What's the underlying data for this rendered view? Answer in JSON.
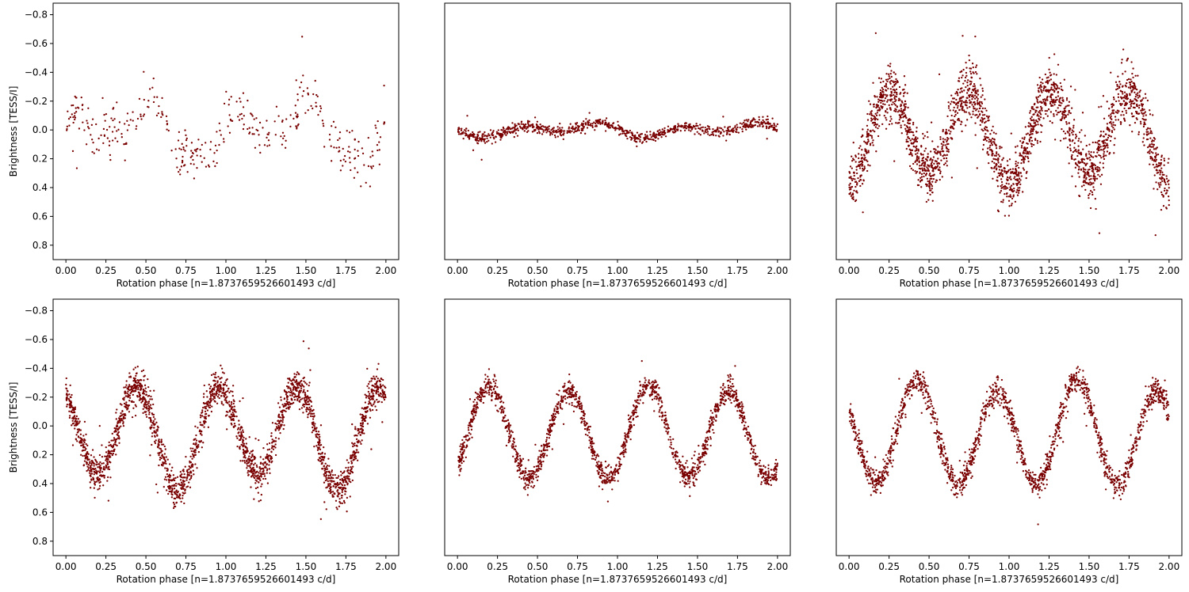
{
  "figure": {
    "point_color": "#7a0000",
    "axis_color": "#000000",
    "background": "#ffffff"
  },
  "chart_data": [
    {
      "type": "scatter",
      "panel": "top-left",
      "xlabel": "Rotation phase [n=1.8737659526601493 c/d]",
      "ylabel": "Brightness [TESS/I]",
      "xlim": [
        -0.08,
        2.08
      ],
      "ylim": [
        0.9,
        -0.88
      ],
      "y_inverted": true,
      "xticks": [
        0.0,
        0.25,
        0.5,
        0.75,
        1.0,
        1.25,
        1.5,
        1.75,
        2.0
      ],
      "xtick_labels": [
        "0.00",
        "0.25",
        "0.50",
        "0.75",
        "1.00",
        "1.25",
        "1.50",
        "1.75",
        "2.00"
      ],
      "yticks": [
        -0.8,
        -0.6,
        -0.4,
        -0.2,
        0.0,
        0.2,
        0.4,
        0.6,
        0.8
      ],
      "ytick_labels": [
        "−0.8",
        "−0.6",
        "−0.4",
        "−0.2",
        "0.0",
        "0.2",
        "0.4",
        "0.6",
        "0.8"
      ],
      "show_yticks": true,
      "n_points": 380,
      "curve": {
        "mean": 0.0,
        "harmonics": [
          [
            0.13,
            2,
            0.55
          ],
          [
            0.1,
            1,
            1.35
          ],
          [
            0.05,
            4,
            0.3
          ]
        ]
      },
      "scatter": 0.085,
      "point_color": "#7a0000"
    },
    {
      "type": "scatter",
      "panel": "top-middle",
      "xlabel": "Rotation phase [n=1.8737659526601493 c/d]",
      "ylabel": "",
      "xlim": [
        -0.08,
        2.08
      ],
      "ylim": [
        0.9,
        -0.88
      ],
      "y_inverted": true,
      "xticks": [
        0.0,
        0.25,
        0.5,
        0.75,
        1.0,
        1.25,
        1.5,
        1.75,
        2.0
      ],
      "xtick_labels": [
        "0.00",
        "0.25",
        "0.50",
        "0.75",
        "1.00",
        "1.25",
        "1.50",
        "1.75",
        "2.00"
      ],
      "yticks": [],
      "ytick_labels": [],
      "show_yticks": false,
      "n_points": 900,
      "curve": {
        "mean": 0.0,
        "harmonics": [
          [
            0.025,
            1,
            0.75
          ],
          [
            0.035,
            2,
            1.4
          ]
        ]
      },
      "scatter": 0.018,
      "point_color": "#7a0000"
    },
    {
      "type": "scatter",
      "panel": "top-right",
      "xlabel": "Rotation phase [n=1.8737659526601493 c/d]",
      "ylabel": "",
      "xlim": [
        -0.08,
        2.08
      ],
      "ylim": [
        0.9,
        -0.88
      ],
      "y_inverted": true,
      "xticks": [
        0.0,
        0.25,
        0.5,
        0.75,
        1.0,
        1.25,
        1.5,
        1.75,
        2.0
      ],
      "xtick_labels": [
        "0.00",
        "0.25",
        "0.50",
        "0.75",
        "1.00",
        "1.25",
        "1.50",
        "1.75",
        "2.00"
      ],
      "yticks": [],
      "ytick_labels": [],
      "show_yticks": false,
      "n_points": 2300,
      "curve": {
        "mean": 0.03,
        "harmonics": [
          [
            0.3,
            2,
            0.25
          ],
          [
            0.04,
            1,
            0.5
          ]
        ]
      },
      "scatter": 0.09,
      "point_color": "#7a0000"
    },
    {
      "type": "scatter",
      "panel": "bottom-left",
      "xlabel": "Rotation phase [n=1.8737659526601493 c/d]",
      "ylabel": "Brightness [TESS/I]",
      "xlim": [
        -0.08,
        2.08
      ],
      "ylim": [
        0.9,
        -0.88
      ],
      "y_inverted": true,
      "xticks": [
        0.0,
        0.25,
        0.5,
        0.75,
        1.0,
        1.25,
        1.5,
        1.75,
        2.0
      ],
      "xtick_labels": [
        "0.00",
        "0.25",
        "0.50",
        "0.75",
        "1.00",
        "1.25",
        "1.50",
        "1.75",
        "2.00"
      ],
      "yticks": [
        -0.8,
        -0.6,
        -0.4,
        -0.2,
        0.0,
        0.2,
        0.4,
        0.6,
        0.8
      ],
      "ytick_labels": [
        "−0.8",
        "−0.6",
        "−0.4",
        "−0.2",
        "0.0",
        "0.2",
        "0.4",
        "0.6",
        "0.8"
      ],
      "show_yticks": true,
      "n_points": 2300,
      "curve": {
        "mean": 0.06,
        "harmonics": [
          [
            0.33,
            2,
            0.45
          ],
          [
            0.06,
            1,
            0.2
          ]
        ]
      },
      "scatter": 0.06,
      "point_color": "#7a0000"
    },
    {
      "type": "scatter",
      "panel": "bottom-middle",
      "xlabel": "Rotation phase [n=1.8737659526601493 c/d]",
      "ylabel": "",
      "xlim": [
        -0.08,
        2.08
      ],
      "ylim": [
        0.9,
        -0.88
      ],
      "y_inverted": true,
      "xticks": [
        0.0,
        0.25,
        0.5,
        0.75,
        1.0,
        1.25,
        1.5,
        1.75,
        2.0
      ],
      "xtick_labels": [
        "0.00",
        "0.25",
        "0.50",
        "0.75",
        "1.00",
        "1.25",
        "1.50",
        "1.75",
        "2.00"
      ],
      "yticks": [],
      "ytick_labels": [],
      "show_yticks": false,
      "n_points": 1700,
      "curve": {
        "mean": 0.05,
        "harmonics": [
          [
            0.31,
            2,
            0.195
          ],
          [
            0.02,
            1,
            0.2
          ]
        ]
      },
      "scatter": 0.04,
      "point_color": "#7a0000"
    },
    {
      "type": "scatter",
      "panel": "bottom-right",
      "xlabel": "Rotation phase [n=1.8737659526601493 c/d]",
      "ylabel": "",
      "xlim": [
        -0.08,
        2.08
      ],
      "ylim": [
        0.9,
        -0.88
      ],
      "y_inverted": true,
      "xticks": [
        0.0,
        0.25,
        0.5,
        0.75,
        1.0,
        1.25,
        1.5,
        1.75,
        2.0
      ],
      "xtick_labels": [
        "0.00",
        "0.25",
        "0.50",
        "0.75",
        "1.00",
        "1.25",
        "1.50",
        "1.75",
        "2.00"
      ],
      "yticks": [],
      "ytick_labels": [],
      "show_yticks": false,
      "n_points": 1700,
      "curve": {
        "mean": 0.06,
        "harmonics": [
          [
            0.34,
            2,
            0.425
          ],
          [
            0.04,
            1,
            0.4
          ]
        ]
      },
      "scatter": 0.045,
      "point_color": "#7a0000"
    }
  ]
}
